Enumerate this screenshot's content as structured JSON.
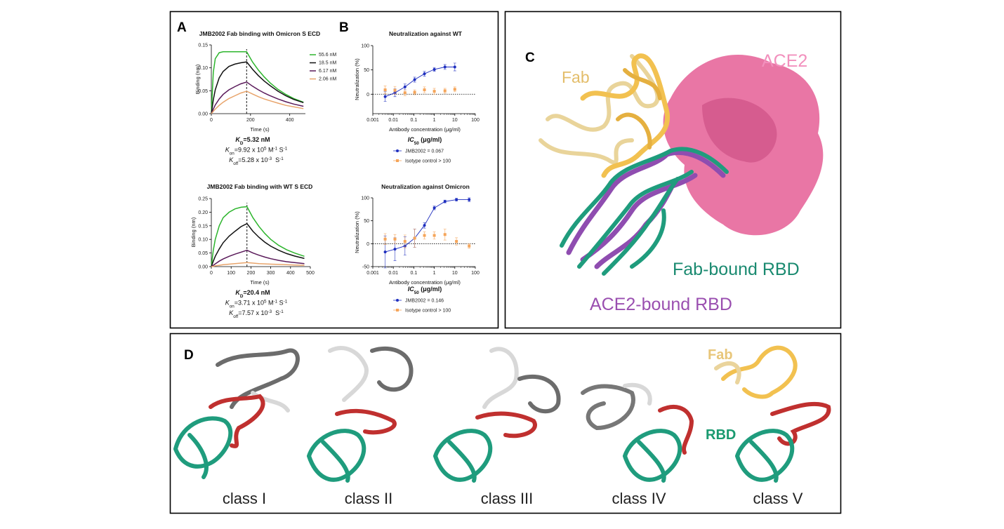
{
  "panel_labels": [
    "A",
    "B",
    "C",
    "D"
  ],
  "chart_data": [
    {
      "type": "line",
      "title": "JMB2002 Fab binding with Omicron S ECD",
      "x_label": "Time (s)",
      "y_label": "Binding (nm)",
      "x": [
        0,
        10,
        20,
        40,
        60,
        90,
        120,
        150,
        180,
        210,
        240,
        270,
        300,
        340,
        380,
        420,
        470
      ],
      "xlim": [
        0,
        480
      ],
      "xticks": [
        0,
        200,
        400
      ],
      "ylim": [
        0,
        0.15
      ],
      "yticks": [
        {
          "value": 0,
          "label": "0.00"
        },
        {
          "value": 0.05,
          "label": "0.05"
        },
        {
          "value": 0.1,
          "label": "0.10"
        },
        {
          "value": 0.15,
          "label": "0.15"
        }
      ],
      "vline_x": 180,
      "series": [
        {
          "name": "55.6 nM",
          "color": "#2db52d",
          "values": [
            0,
            0.09,
            0.12,
            0.133,
            0.135,
            0.135,
            0.135,
            0.135,
            0.135,
            0.113,
            0.095,
            0.08,
            0.067,
            0.053,
            0.042,
            0.033,
            0.025
          ]
        },
        {
          "name": "18.5 nM",
          "color": "#111111",
          "values": [
            0,
            0.03,
            0.052,
            0.078,
            0.092,
            0.103,
            0.108,
            0.111,
            0.113,
            0.097,
            0.083,
            0.071,
            0.061,
            0.049,
            0.039,
            0.031,
            0.024
          ]
        },
        {
          "name": "6.17 nM",
          "color": "#5a1a5a",
          "values": [
            0,
            0.01,
            0.019,
            0.032,
            0.042,
            0.052,
            0.059,
            0.065,
            0.069,
            0.06,
            0.052,
            0.045,
            0.039,
            0.032,
            0.026,
            0.021,
            0.016
          ]
        },
        {
          "name": "2.06 nM",
          "color": "#e8a46b",
          "values": [
            0,
            0.005,
            0.01,
            0.018,
            0.025,
            0.033,
            0.039,
            0.045,
            0.049,
            0.043,
            0.037,
            0.032,
            0.028,
            0.023,
            0.018,
            0.015,
            0.011
          ]
        }
      ],
      "kinetics": [
        {
          "bold": true,
          "parts": [
            {
              "t": "K",
              "italic": true
            },
            {
              "t": "D",
              "pos": "sub"
            },
            {
              "t": "=5.32 nM"
            }
          ]
        },
        {
          "parts": [
            {
              "t": "K",
              "italic": true
            },
            {
              "t": "on",
              "pos": "sub"
            },
            {
              "t": "=9.92 x 10"
            },
            {
              "t": "5",
              "pos": "super"
            },
            {
              "t": " M"
            },
            {
              "t": "-1",
              "pos": "super"
            },
            {
              "t": " S"
            },
            {
              "t": "-1",
              "pos": "super"
            }
          ]
        },
        {
          "parts": [
            {
              "t": "K",
              "italic": true
            },
            {
              "t": "off",
              "pos": "sub"
            },
            {
              "t": "=5.28 x 10"
            },
            {
              "t": "-3",
              "pos": "super"
            },
            {
              "t": "  S"
            },
            {
              "t": "-1",
              "pos": "super"
            }
          ]
        }
      ]
    },
    {
      "type": "line",
      "title": "JMB2002 Fab binding with WT S ECD",
      "x_label": "Time (s)",
      "y_label": "Binding (nm)",
      "x": [
        0,
        10,
        20,
        40,
        60,
        90,
        120,
        150,
        180,
        210,
        240,
        270,
        300,
        340,
        380,
        420,
        470
      ],
      "xlim": [
        0,
        500
      ],
      "xticks": [
        0,
        100,
        200,
        300,
        400,
        500
      ],
      "ylim": [
        0,
        0.25
      ],
      "yticks": [
        {
          "value": 0,
          "label": "0.00"
        },
        {
          "value": 0.05,
          "label": "0.05"
        },
        {
          "value": 0.1,
          "label": "0.10"
        },
        {
          "value": 0.15,
          "label": "0.15"
        },
        {
          "value": 0.2,
          "label": "0.20"
        },
        {
          "value": 0.25,
          "label": "0.25"
        }
      ],
      "vline_x": 180,
      "series": [
        {
          "color": "#2db52d",
          "values": [
            0,
            0.06,
            0.1,
            0.15,
            0.18,
            0.2,
            0.212,
            0.218,
            0.22,
            0.18,
            0.148,
            0.122,
            0.1,
            0.078,
            0.062,
            0.05,
            0.038
          ]
        },
        {
          "color": "#111111",
          "values": [
            0,
            0.02,
            0.038,
            0.065,
            0.088,
            0.112,
            0.13,
            0.147,
            0.158,
            0.13,
            0.108,
            0.09,
            0.075,
            0.06,
            0.048,
            0.039,
            0.03
          ]
        },
        {
          "color": "#5a1a5a",
          "values": [
            0,
            0.005,
            0.01,
            0.02,
            0.028,
            0.038,
            0.046,
            0.053,
            0.06,
            0.05,
            0.042,
            0.035,
            0.029,
            0.023,
            0.018,
            0.015,
            0.011
          ]
        },
        {
          "color": "#e8a46b",
          "values": [
            0,
            0.001,
            0.003,
            0.005,
            0.007,
            0.009,
            0.011,
            0.013,
            0.015,
            0.013,
            0.011,
            0.01,
            0.009,
            0.008,
            0.007,
            0.006,
            0.005
          ]
        }
      ],
      "kinetics": [
        {
          "bold": true,
          "parts": [
            {
              "t": "K",
              "italic": true
            },
            {
              "t": "D",
              "pos": "sub"
            },
            {
              "t": "=20.4 nM"
            }
          ]
        },
        {
          "parts": [
            {
              "t": "K",
              "italic": true
            },
            {
              "t": "on",
              "pos": "sub"
            },
            {
              "t": "=3.71 x 10"
            },
            {
              "t": "5",
              "pos": "super"
            },
            {
              "t": " M"
            },
            {
              "t": "-1",
              "pos": "super"
            },
            {
              "t": " S"
            },
            {
              "t": "-1",
              "pos": "super"
            }
          ]
        },
        {
          "parts": [
            {
              "t": "K",
              "italic": true
            },
            {
              "t": "off",
              "pos": "sub"
            },
            {
              "t": "=7.57 x 10"
            },
            {
              "t": "-3",
              "pos": "super"
            },
            {
              "t": "  S"
            },
            {
              "t": "-1",
              "pos": "super"
            }
          ]
        }
      ]
    },
    {
      "type": "scatter",
      "title": "Neutralization against WT",
      "x_label": "Antibody concentration (μg/ml)",
      "y_label": "Neutralization (%)",
      "log_x": true,
      "xlim": [
        0.001,
        100
      ],
      "xticks": [
        0.001,
        0.01,
        0.1,
        1,
        10,
        100
      ],
      "ylim": [
        -40,
        100
      ],
      "yticks": [
        0,
        50,
        100
      ],
      "zero_line": true,
      "legend_title": [
        {
          "t": "IC",
          "italic": true
        },
        {
          "t": "50",
          "pos": "sub"
        },
        {
          "t": " (μg/ml)"
        }
      ],
      "series": [
        {
          "name": "JMB2002 = 0.067",
          "color": "#1f2fbf",
          "marker": "circle",
          "fit": true,
          "x": [
            0.004,
            0.012,
            0.037,
            0.11,
            0.33,
            1,
            3.3,
            10
          ],
          "values": [
            -5,
            3,
            15,
            30,
            42,
            51,
            56,
            56
          ],
          "errors": [
            10,
            8,
            6,
            5,
            5,
            4,
            5,
            8
          ]
        },
        {
          "name": "Isotype control > 100",
          "color": "#f5a55a",
          "marker": "square",
          "x": [
            0.004,
            0.012,
            0.037,
            0.11,
            0.33,
            1,
            3.3,
            10
          ],
          "values": [
            9,
            8,
            3,
            4,
            9,
            6,
            7,
            10
          ],
          "errors": [
            8,
            8,
            6,
            5,
            6,
            6,
            5,
            5
          ]
        }
      ]
    },
    {
      "type": "scatter",
      "title": "Neutralization against Omicron",
      "x_label": "Antibody concentration (μg/ml)",
      "y_label": "Neutralization (%)",
      "log_x": true,
      "xlim": [
        0.001,
        100
      ],
      "xticks": [
        0.001,
        0.01,
        0.1,
        1,
        10,
        100
      ],
      "ylim": [
        -50,
        100
      ],
      "yticks": [
        -50,
        0,
        50,
        100
      ],
      "zero_line": true,
      "legend_title": [
        {
          "t": "IC",
          "italic": true
        },
        {
          "t": "50",
          "pos": "sub"
        },
        {
          "t": " (μg/ml)"
        }
      ],
      "series": [
        {
          "name": "JMB2002 = 0.146",
          "color": "#1f2fbf",
          "marker": "circle",
          "fit": true,
          "x": [
            0.004,
            0.012,
            0.037,
            0.11,
            0.33,
            1,
            3.3,
            12,
            50
          ],
          "values": [
            -18,
            -12,
            -5,
            12,
            40,
            78,
            92,
            96,
            96
          ],
          "errors": [
            35,
            25,
            20,
            20,
            6,
            4,
            3,
            3,
            4
          ]
        },
        {
          "name": "Isotype control > 100",
          "color": "#f5a55a",
          "marker": "square",
          "x": [
            0.004,
            0.012,
            0.037,
            0.11,
            0.33,
            1,
            3.3,
            12,
            50
          ],
          "values": [
            10,
            10,
            5,
            12,
            18,
            18,
            20,
            5,
            -5
          ],
          "errors": [
            12,
            10,
            14,
            20,
            8,
            8,
            12,
            8,
            5
          ]
        }
      ]
    }
  ],
  "panel_c": {
    "labels": [
      "Fab",
      "ACE2",
      "Fab-bound RBD",
      "ACE2-bound RBD"
    ]
  },
  "panel_d": {
    "classes": [
      "class I",
      "class II",
      "class III",
      "class IV",
      "class V"
    ],
    "fab": "Fab",
    "rbd": "RBD"
  }
}
